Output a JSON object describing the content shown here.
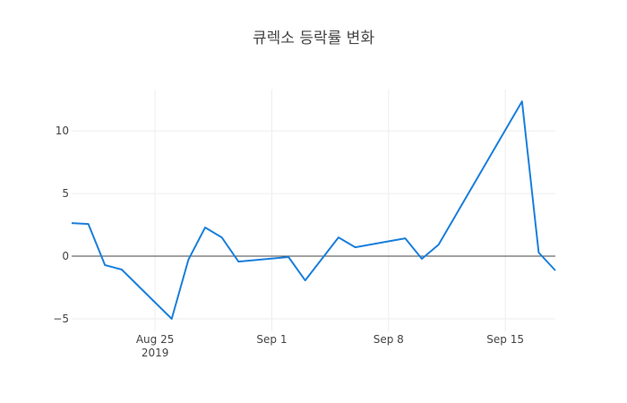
{
  "chart_data": {
    "type": "line",
    "title": "큐렉소 등락률 변화",
    "x": [
      "2019-08-20",
      "2019-08-21",
      "2019-08-22",
      "2019-08-23",
      "2019-08-26",
      "2019-08-27",
      "2019-08-28",
      "2019-08-29",
      "2019-08-30",
      "2019-09-02",
      "2019-09-03",
      "2019-09-05",
      "2019-09-06",
      "2019-09-09",
      "2019-09-10",
      "2019-09-11",
      "2019-09-16",
      "2019-09-17",
      "2019-09-18"
    ],
    "series": [
      {
        "color": "#1a7fdc",
        "values": [
          2.64,
          2.57,
          -0.71,
          -1.07,
          -5.0,
          -0.29,
          2.29,
          1.5,
          -0.43,
          -0.07,
          -1.93,
          1.5,
          0.71,
          1.43,
          -0.21,
          0.93,
          12.36,
          0.29,
          -1.14
        ]
      }
    ],
    "xlim": [
      "2019-08-20",
      "2019-09-18"
    ],
    "xticks": [
      {
        "value": "2019-08-25",
        "label": "Aug 25\n2019"
      },
      {
        "value": "2019-09-01",
        "label": "Sep 1"
      },
      {
        "value": "2019-09-08",
        "label": "Sep 8"
      },
      {
        "value": "2019-09-15",
        "label": "Sep 15"
      }
    ],
    "ylim": [
      -6.0,
      13.3
    ],
    "yticks": [
      {
        "value": -5,
        "label": "−5"
      },
      0,
      5,
      10
    ],
    "grid": true,
    "zero_line": true
  }
}
